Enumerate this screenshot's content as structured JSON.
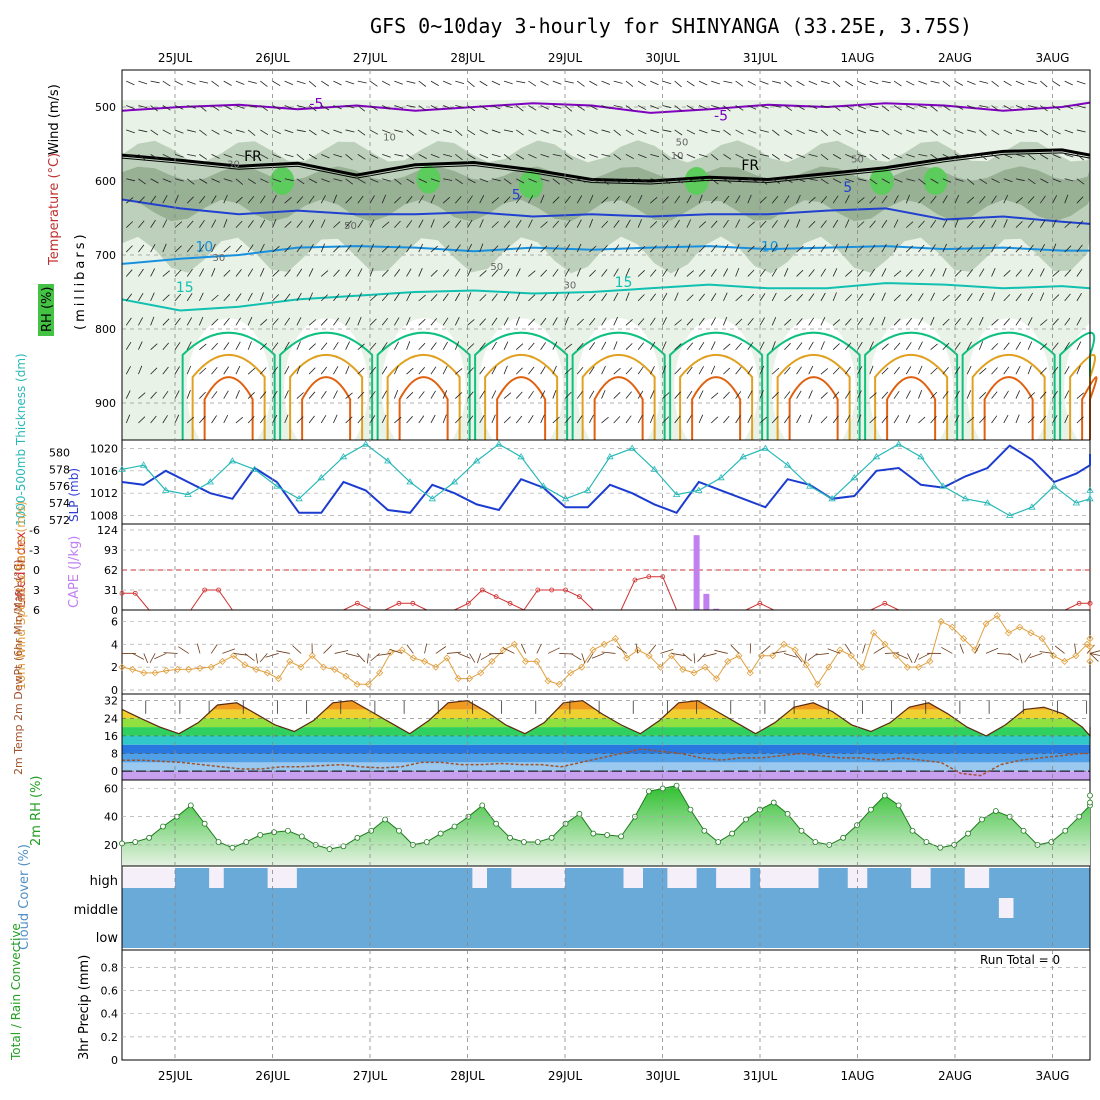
{
  "title": "GFS 0~10day 3-hourly for SHINYANGA (33.25E, 3.75S)",
  "chart_data": {
    "type": "meteogram",
    "dates": [
      "25JUL",
      "26JUL",
      "27JUL",
      "28JUL",
      "29JUL",
      "30JUL",
      "31JUL",
      "1AUG",
      "2AUG",
      "3AUG"
    ],
    "colors": {
      "temperature_minus5": "#8000c0",
      "freezing_line": "#000000",
      "temp_5": "#2040d0",
      "temp_10": "#1890e0",
      "temp_15": "#10c0b0",
      "temp_20": "#10c080",
      "temp_25": "#e0a020",
      "temp_30": "#e06010",
      "rh_fill": "#4cc44c",
      "slp": "#1c3cd0",
      "thickness": "#28b8b8",
      "lifted_index": "#d03030",
      "cape": "#c080f0",
      "wind_speed": "#e0a040",
      "cloud": "#6aaad8",
      "dewpoint": "#a0522d"
    },
    "upper_panel": {
      "ylabel_wind": "Wind (m/s)",
      "ylabel_temp": "Temperature (°C)",
      "ylabel_rh": "RH (%)",
      "ylabel_units": "(millibars)",
      "pressure_ticks": [
        500,
        600,
        700,
        800,
        900
      ],
      "ylim": [
        450,
        950
      ],
      "contour_labels": [
        "-5",
        "-5",
        "FR",
        "FR",
        "5",
        "5",
        "10",
        "10",
        "15",
        "15"
      ],
      "rh_labels": [
        "10",
        "30",
        "50",
        "30",
        "10",
        "50",
        "50",
        "30",
        "50"
      ],
      "isotherms": [
        {
          "name": "-5",
          "pressure": [
            505,
            500,
            497,
            503,
            498,
            505,
            500,
            495,
            498,
            508,
            503,
            497,
            500,
            495,
            498,
            505,
            500,
            494
          ]
        },
        {
          "name": "FR",
          "pressure": [
            565,
            572,
            580,
            576,
            592,
            578,
            575,
            585,
            598,
            600,
            595,
            598,
            590,
            582,
            570,
            560,
            558,
            565
          ]
        },
        {
          "name": "5",
          "pressure": [
            625,
            637,
            645,
            640,
            645,
            645,
            642,
            648,
            645,
            648,
            645,
            645,
            640,
            637,
            652,
            648,
            655,
            658
          ]
        },
        {
          "name": "10",
          "pressure": [
            712,
            705,
            700,
            690,
            688,
            690,
            695,
            690,
            693,
            690,
            688,
            692,
            690,
            688,
            692,
            690,
            694,
            694
          ]
        },
        {
          "name": "15",
          "pressure": [
            760,
            775,
            770,
            760,
            755,
            750,
            748,
            752,
            750,
            745,
            740,
            745,
            745,
            738,
            740,
            745,
            742,
            745
          ]
        }
      ]
    },
    "slp_thickness": {
      "ylabel_thickness": "1000-500mb Thickness (dm)",
      "ylabel_slp": "SLP (mb)",
      "thickness_ticks": [
        572,
        574,
        576,
        578,
        580
      ],
      "slp_ticks": [
        1008,
        1012,
        1016,
        1020
      ],
      "thickness_ylim": [
        571.5,
        581.5
      ],
      "slp_ylim": [
        1006.5,
        1021.5
      ],
      "slp": [
        1014,
        1013.5,
        1016,
        1014,
        1012,
        1011,
        1016.5,
        1014,
        1008.5,
        1008.5,
        1014,
        1012.5,
        1009,
        1008.5,
        1013.5,
        1012,
        1010,
        1009,
        1014.5,
        1013,
        1009.5,
        1009.5,
        1013.5,
        1012,
        1010,
        1008.5,
        1014,
        1012.5,
        1011,
        1009.5,
        1014.5,
        1013.5,
        1011,
        1011.5,
        1016,
        1016.5,
        1013.5,
        1013,
        1015,
        1016.5,
        1020.5,
        1018,
        1014,
        1015.5,
        1017,
        1019
      ],
      "thickness": [
        578,
        578.5,
        575.5,
        575,
        576.5,
        579,
        578,
        576,
        574.5,
        577,
        579.5,
        581,
        579,
        576.5,
        574.5,
        576.5,
        579,
        581,
        579.5,
        576,
        574.5,
        575.5,
        579.5,
        580.5,
        578,
        575,
        575.5,
        577,
        579.5,
        580.5,
        578.5,
        576,
        574.5,
        577,
        579.5,
        581,
        579.5,
        576,
        574.5,
        574,
        572.5,
        573.5,
        576,
        574,
        574.5,
        575.5
      ]
    },
    "stability": {
      "ylabel_li": "Lifted Index",
      "ylabel_cape": "CAPE (J/kg)",
      "li_ticks": [
        "-6",
        "-3",
        "0",
        "3",
        "6"
      ],
      "cape_ticks": [
        0,
        31,
        62,
        93,
        124
      ],
      "li_ylim": [
        6,
        -6
      ],
      "cape_ylim": [
        0,
        124
      ],
      "lifted_index": [
        3.5,
        3.5,
        6,
        6,
        6,
        6,
        3,
        3,
        6,
        6,
        6,
        6,
        6,
        6,
        6,
        6,
        6,
        5,
        6,
        6,
        5,
        5,
        6,
        6,
        6,
        5,
        3,
        4,
        5,
        6,
        3,
        3,
        3,
        4,
        6,
        6,
        6,
        1.5,
        1,
        1,
        6,
        6,
        6,
        6,
        6,
        6,
        5,
        6,
        6,
        6,
        6,
        6,
        6,
        6,
        6,
        5,
        6,
        6,
        6,
        6,
        6,
        6,
        6,
        6,
        6,
        6,
        6,
        6,
        6,
        5,
        5,
        5,
        6
      ],
      "cape_bars": [
        {
          "day": 5.35,
          "value": 116
        },
        {
          "day": 5.45,
          "value": 25
        },
        {
          "day": 5.55,
          "value": 2
        }
      ]
    },
    "wind10m": {
      "ylabel": "10m Wind Speed & Barbs (m/s)",
      "ticks": [
        0,
        2,
        4,
        6
      ],
      "ylim": [
        0,
        7
      ],
      "speed": [
        2,
        1.8,
        1.5,
        1.5,
        1.7,
        1.8,
        1.8,
        1.9,
        2,
        2.5,
        3,
        2.2,
        1.8,
        1.5,
        1,
        2.5,
        2,
        3,
        2,
        1.8,
        1.2,
        0.5,
        0.5,
        1.5,
        3.3,
        3.5,
        2.8,
        2.5,
        2,
        2.8,
        1,
        1,
        1.5,
        2.5,
        3.5,
        4,
        2.5,
        2.5,
        0.8,
        0.5,
        1.5,
        2,
        3.5,
        4,
        4.5,
        2.8,
        3.5,
        3,
        2,
        3,
        1.8,
        1.5,
        2,
        1,
        2.5,
        3,
        1.5,
        3,
        3,
        4,
        3.5,
        2.2,
        0.5,
        2,
        3.5,
        3,
        2,
        5,
        4,
        3,
        2,
        2,
        2.5,
        6,
        5.5,
        4.5,
        3.5,
        5.8,
        6.5,
        5,
        5.5,
        5,
        4.5,
        3,
        2.5,
        3,
        4,
        3.8,
        4.5,
        2.5
      ]
    },
    "temp2m": {
      "ylabel": "2m Temp 2m DewPt (6hr Min/Max) (°C)",
      "ticks": [
        0,
        8,
        16,
        24,
        32
      ],
      "ylim": [
        -4,
        35
      ],
      "temperature": [
        28,
        24,
        20,
        17,
        22,
        30,
        31,
        26,
        21,
        18,
        23,
        31,
        32,
        27,
        22,
        17,
        23,
        31,
        32,
        27,
        21,
        17,
        22,
        31,
        32,
        26,
        21,
        17,
        23,
        31,
        32,
        27,
        22,
        17,
        22,
        29,
        31,
        27,
        21,
        18,
        22,
        29,
        31,
        26,
        20,
        16,
        21,
        28,
        29,
        26,
        20,
        16,
        20
      ],
      "dewpoint": [
        5,
        5,
        4.5,
        4,
        3,
        2,
        1,
        1,
        2,
        2,
        2.5,
        3,
        2,
        1.5,
        2,
        4,
        4,
        3,
        3,
        3.5,
        3,
        3,
        2,
        4,
        6,
        8,
        10,
        9,
        8,
        6,
        5,
        6,
        6,
        7,
        8,
        7,
        6,
        6,
        5,
        6,
        5,
        4,
        -1,
        -2,
        3,
        5,
        6,
        7,
        8,
        8,
        8
      ]
    },
    "rh2m": {
      "ylabel": "2m RH (%)",
      "ticks": [
        20,
        40,
        60
      ],
      "ylim": [
        5,
        66
      ],
      "rh": [
        21,
        22,
        25,
        33,
        40,
        48,
        35,
        22,
        18,
        22,
        27,
        29,
        30,
        26,
        20,
        17,
        19,
        25,
        30,
        38,
        30,
        20,
        22,
        28,
        33,
        40,
        48,
        35,
        25,
        22,
        22,
        25,
        35,
        42,
        28,
        27,
        26,
        40,
        58,
        60,
        62,
        45,
        30,
        22,
        28,
        38,
        45,
        50,
        42,
        30,
        22,
        20,
        25,
        34,
        45,
        55,
        48,
        30,
        22,
        18,
        20,
        28,
        38,
        44,
        40,
        30,
        20,
        22,
        30,
        40,
        48,
        55,
        50
      ]
    },
    "cloud": {
      "ylabel": "Cloud Cover (%)",
      "layers": [
        "high",
        "middle",
        "low"
      ],
      "high_clear_blocks": [
        [
          0,
          0.55
        ],
        [
          0.9,
          1.05
        ],
        [
          1.5,
          1.8
        ],
        [
          3.6,
          3.75
        ],
        [
          4.0,
          4.55
        ],
        [
          5.15,
          5.35
        ],
        [
          5.6,
          5.9
        ],
        [
          6.1,
          6.45
        ],
        [
          6.55,
          7.15
        ],
        [
          7.45,
          7.65
        ],
        [
          8.1,
          8.3
        ],
        [
          8.65,
          8.9
        ]
      ],
      "middle_clear_blocks": [
        [
          9.0,
          9.15
        ]
      ]
    },
    "precip": {
      "ylabel_series": "Total / Rain Convective",
      "ylabel": "3hr Precip (mm)",
      "ticks": [
        0,
        0.2,
        0.4,
        0.6,
        0.8
      ],
      "ylim": [
        0,
        0.95
      ],
      "run_total": "Run Total = 0",
      "values": []
    }
  }
}
